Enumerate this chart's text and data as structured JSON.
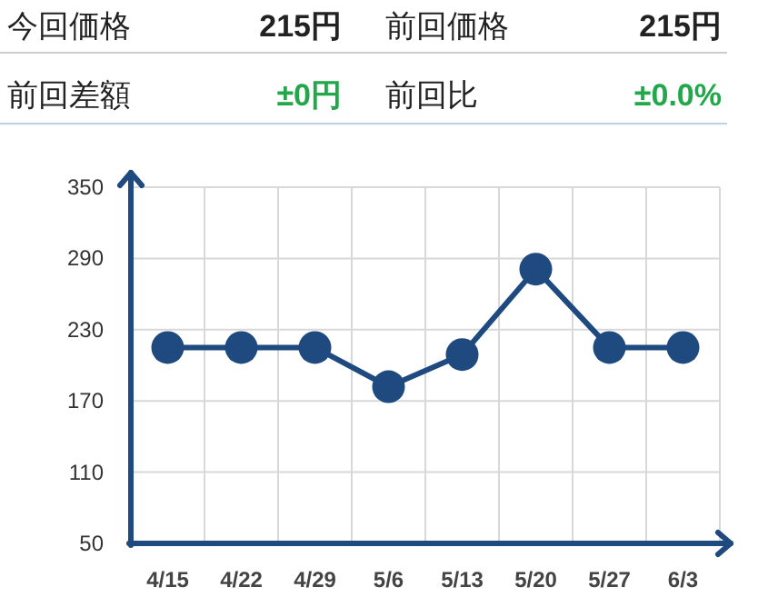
{
  "chart_data": [
    {
      "type": "other",
      "annotations": [
        "今回価格",
        "215円",
        "前回価格",
        "215円",
        "前回差額",
        "±0円",
        "前回比",
        "±0.0%"
      ]
    },
    {
      "type": "line",
      "categories": [
        "4/15",
        "4/22",
        "4/29",
        "5/6",
        "5/13",
        "5/20",
        "5/27",
        "6/3"
      ],
      "series": [
        {
          "color": "#1f4a7f",
          "values": [
            215,
            215,
            215,
            182,
            209,
            281,
            215,
            215
          ]
        }
      ],
      "ylim": [
        50,
        350
      ],
      "yticks": [
        50,
        110,
        170,
        230,
        290,
        350
      ],
      "grid": true,
      "marker": "circle",
      "line_style": "solid"
    }
  ]
}
